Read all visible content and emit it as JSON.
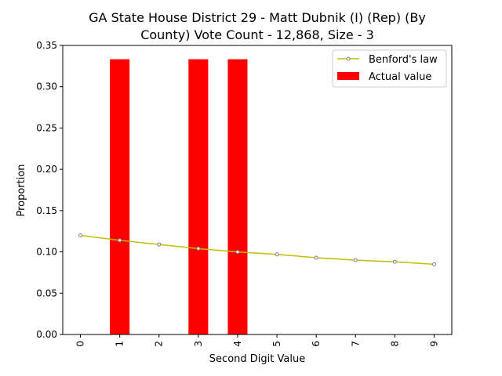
{
  "chart_data": {
    "type": "bar",
    "title_lines": [
      "GA State House District 29 - Matt Dubnik (I) (Rep) (By",
      "County) Vote Count - 12,868, Size - 3"
    ],
    "xlabel": "Second Digit Value",
    "ylabel": "Proportion",
    "categories": [
      "0",
      "1",
      "2",
      "3",
      "4",
      "5",
      "6",
      "7",
      "8",
      "9"
    ],
    "ylim": [
      0,
      0.35
    ],
    "yticks": [
      0.0,
      0.05,
      0.1,
      0.15,
      0.2,
      0.25,
      0.3,
      0.35
    ],
    "ytick_labels": [
      "0.00",
      "0.05",
      "0.10",
      "0.15",
      "0.20",
      "0.25",
      "0.30",
      "0.35"
    ],
    "grid": false,
    "legend_position": "top-right",
    "series": [
      {
        "name": "Benford's law",
        "type": "line",
        "color": "#bfbf00",
        "values": [
          0.12,
          0.114,
          0.109,
          0.104,
          0.1,
          0.097,
          0.093,
          0.09,
          0.088,
          0.085
        ]
      },
      {
        "name": "Actual value",
        "type": "bar",
        "color": "#ff0000",
        "values": [
          0,
          0.3333,
          0,
          0.3333,
          0.3333,
          0,
          0,
          0,
          0,
          0
        ]
      }
    ]
  }
}
